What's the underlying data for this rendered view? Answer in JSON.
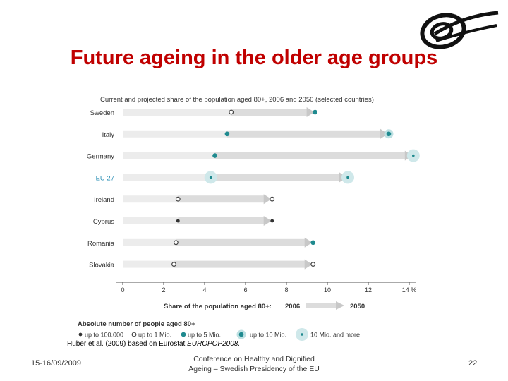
{
  "slide": {
    "title": "Future ageing in the older age groups",
    "source_text": "Huber et al. (2009) based on Eurostat ",
    "source_italic": "EUROPOP2008.",
    "footer_date": "15-16/09/2009",
    "footer_conf_line1": "Conference on Healthy and Dignified",
    "footer_conf_line2": "Ageing – Swedish Presidency of the EU",
    "page_number": "22"
  },
  "chart_data": {
    "type": "dot-arrow",
    "title": "Current and projected share of the population aged 80+, 2006 and 2050 (selected countries)",
    "xlabel": "Share of the population aged 80+:",
    "x_ticks": [
      "0",
      "2",
      "4",
      "6",
      "8",
      "10",
      "12",
      "14 %"
    ],
    "xlim": [
      0,
      14
    ],
    "legend_years": [
      "2006",
      "2050"
    ],
    "size_legend_title": "Absolute number of people aged 80+",
    "size_legend": [
      {
        "label": "up to 100.000",
        "size": 1
      },
      {
        "label": "up to 1 Mio.",
        "size": 2
      },
      {
        "label": "up to 5 Mio.",
        "size": 3
      },
      {
        "label": "up to 10 Mio.",
        "size": 4
      },
      {
        "label": "10 Mio. and more",
        "size": 5
      }
    ],
    "countries": [
      {
        "name": "Sweden",
        "v2006": 5.3,
        "v2050": 9.4,
        "s2006": 2,
        "s2050": 3,
        "highlight": false
      },
      {
        "name": "Italy",
        "v2006": 5.1,
        "v2050": 13.0,
        "s2006": 3,
        "s2050": 4,
        "highlight": false
      },
      {
        "name": "Germany",
        "v2006": 4.5,
        "v2050": 14.2,
        "s2006": 3,
        "s2050": 5,
        "highlight": false
      },
      {
        "name": "EU 27",
        "v2006": 4.3,
        "v2050": 11.0,
        "s2006": 5,
        "s2050": 5,
        "highlight": true
      },
      {
        "name": "Ireland",
        "v2006": 2.7,
        "v2050": 7.3,
        "s2006": 2,
        "s2050": 2,
        "highlight": false
      },
      {
        "name": "Cyprus",
        "v2006": 2.7,
        "v2050": 7.3,
        "s2006": 1,
        "s2050": 1,
        "highlight": false
      },
      {
        "name": "Romania",
        "v2006": 2.6,
        "v2050": 9.3,
        "s2006": 2,
        "s2050": 3,
        "highlight": false
      },
      {
        "name": "Slovakia",
        "v2006": 2.5,
        "v2050": 9.3,
        "s2006": 2,
        "s2050": 2,
        "highlight": false
      }
    ],
    "colors": {
      "teal": "#1f8a8f",
      "bar": "#dcdcdc",
      "arrow": "#c8c8c8",
      "highlight_text": "#2a8fb5",
      "dark": "#333333"
    }
  }
}
